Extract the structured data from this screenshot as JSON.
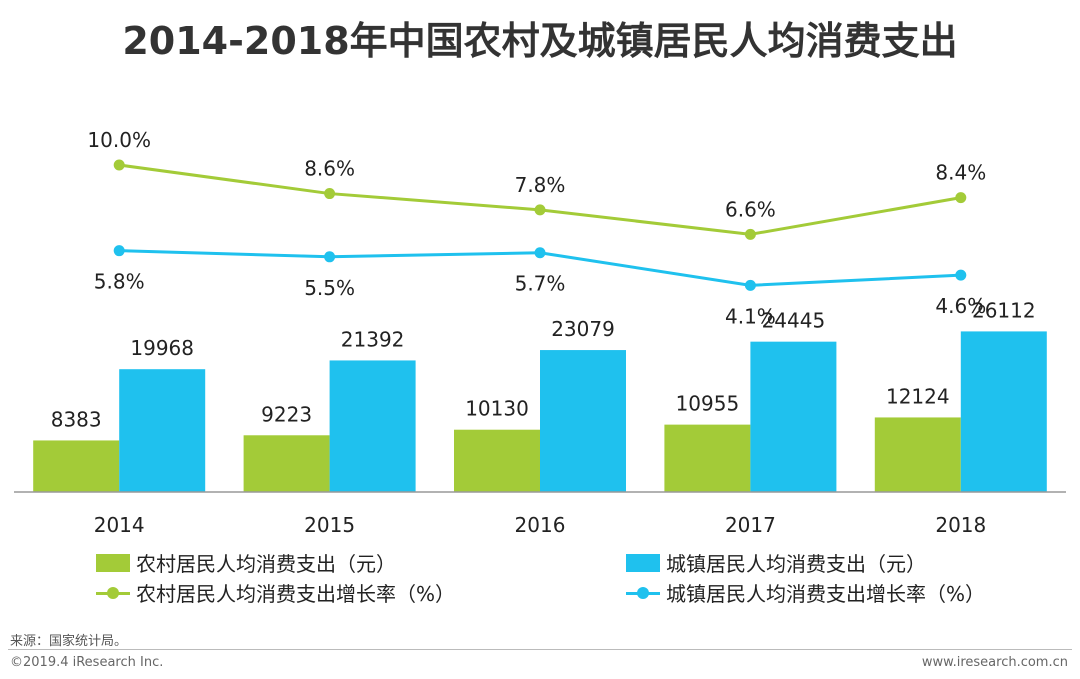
{
  "title": "2014-2018年中国农村及城镇居民人均消费支出",
  "colors": {
    "rural": "#a3cb38",
    "urban": "#1fc1ee",
    "axis": "#999999"
  },
  "chart_data": {
    "type": "bar+line",
    "categories": [
      "2014",
      "2015",
      "2016",
      "2017",
      "2018"
    ],
    "bar_series": [
      {
        "name": "农村居民人均消费支出（元）",
        "values": [
          8383,
          9223,
          10130,
          10955,
          12124
        ]
      },
      {
        "name": "城镇居民人均消费支出（元）",
        "values": [
          19968,
          21392,
          23079,
          24445,
          26112
        ]
      }
    ],
    "line_series": [
      {
        "name": "农村居民人均消费支出增长率（%）",
        "values": [
          10.0,
          8.6,
          7.8,
          6.6,
          8.4
        ],
        "labels": [
          "10.0%",
          "8.6%",
          "7.8%",
          "6.6%",
          "8.4%"
        ]
      },
      {
        "name": "城镇居民人均消费支出增长率（%）",
        "values": [
          5.8,
          5.5,
          5.7,
          4.1,
          4.6
        ],
        "labels": [
          "5.8%",
          "5.5%",
          "5.7%",
          "4.1%",
          "4.6%"
        ]
      }
    ],
    "bar_ylim": [
      0,
      40000
    ],
    "line_ylim": [
      0,
      12
    ]
  },
  "legend": {
    "rural_bar": "农村居民人均消费支出（元）",
    "urban_bar": "城镇居民人均消费支出（元）",
    "rural_line": "农村居民人均消费支出增长率（%）",
    "urban_line": "城镇居民人均消费支出增长率（%）"
  },
  "source": "来源：国家统计局。",
  "footer": {
    "copyright": "©2019.4 iResearch Inc.",
    "website": "www.iresearch.com.cn"
  }
}
